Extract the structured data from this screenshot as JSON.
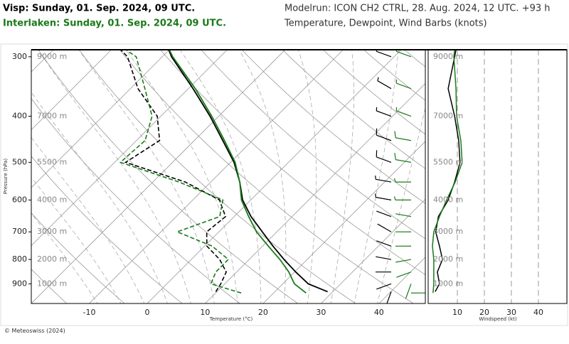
{
  "header": {
    "station_1": "Visp: Sunday, 01. Sep. 2024, 09 UTC.",
    "station_2": "Interlaken: Sunday, 01. Sep. 2024, 09 UTC.",
    "model_run": "Modelrun: ICON CH2 CTRL, 28. Aug. 2024, 12 UTC. +93 h",
    "subtitle": "Temperature, Dewpoint, Wind Barbs (knots)"
  },
  "footer": "© Meteoswiss (2024)",
  "chart_data": [
    {
      "type": "skew-t",
      "xlabel": "Temperature (°C)",
      "ylabel": "Pressure (hPa)",
      "yscale": "log",
      "xlim": [
        -20,
        48
      ],
      "xticks": [
        -10,
        0,
        10,
        20,
        30,
        40
      ],
      "ylim": [
        990,
        290
      ],
      "yticks": [
        300,
        400,
        500,
        600,
        700,
        800,
        900
      ],
      "height_labels": [
        "9000 m",
        "7000 m",
        "5500 m",
        "4000 m",
        "3000 m",
        "2000 m",
        "1000 m"
      ],
      "series": [
        {
          "color": "#000000",
          "pressure": [
            935,
            900,
            850,
            800,
            750,
            700,
            650,
            600,
            550,
            500,
            450,
            400,
            350,
            300,
            290
          ],
          "temperature": [
            29.1,
            24.4,
            20.2,
            16.0,
            11.8,
            7.5,
            2.9,
            -1.4,
            -5.0,
            -9.4,
            -15.1,
            -21.5,
            -29.2,
            -38.4,
            -40.1
          ],
          "dewpoint": [
            9.8,
            9.3,
            8.2,
            4.9,
            0.4,
            -2.1,
            -1.5,
            -5.4,
            -14.4,
            -28.1,
            -26.0,
            -30.6,
            -38.7,
            -46.0,
            -48.4
          ]
        },
        {
          "color": "#1a7a1a",
          "pressure": [
            941,
            900,
            850,
            800,
            750,
            700,
            650,
            600,
            550,
            500,
            450,
            400,
            350,
            300,
            290
          ],
          "temperature": [
            25.6,
            22.0,
            19.0,
            15.3,
            11.0,
            6.5,
            2.5,
            -1.6,
            -5.0,
            -9.2,
            -14.8,
            -21.2,
            -28.8,
            -38.2,
            -40.0
          ],
          "dewpoint": [
            14.4,
            7.6,
            6.4,
            6.4,
            1.3,
            -7.2,
            -2.5,
            -4.8,
            -15.5,
            -29.0,
            -28.5,
            -31.5,
            -37.5,
            -44.5,
            -47.5
          ]
        }
      ]
    },
    {
      "type": "line",
      "xlabel": "Windspeed (kt)",
      "yscale": "log",
      "xlim": [
        0,
        50
      ],
      "xticks": [
        10,
        20,
        30,
        40
      ],
      "ylim": [
        990,
        290
      ],
      "grid": true,
      "series": [
        {
          "color": "#000000",
          "pressure": [
            935,
            900,
            850,
            800,
            750,
            700,
            650,
            600,
            550,
            500,
            450,
            400,
            350,
            300,
            290
          ],
          "values": [
            1.8,
            3.4,
            2.6,
            4.5,
            3.4,
            2.0,
            3.0,
            6.6,
            9.0,
            11.0,
            10.5,
            9.0,
            6.6,
            9.0,
            9.5
          ],
          "direction": [
            200,
            250,
            270,
            280,
            290,
            300,
            290,
            280,
            280,
            290,
            290,
            290,
            300,
            290,
            290
          ]
        },
        {
          "color": "#1a7a1a",
          "pressure": [
            941,
            900,
            850,
            800,
            750,
            700,
            650,
            600,
            550,
            500,
            450,
            400,
            350,
            300,
            290
          ],
          "values": [
            1.0,
            1.3,
            1.3,
            1.3,
            0.8,
            1.3,
            3.4,
            6.0,
            9.2,
            11.8,
            11.3,
            9.7,
            9.5,
            8.7,
            9.0
          ],
          "direction": [
            90,
            200,
            250,
            260,
            270,
            270,
            280,
            270,
            270,
            280,
            280,
            290,
            290,
            290,
            290
          ]
        }
      ]
    }
  ]
}
